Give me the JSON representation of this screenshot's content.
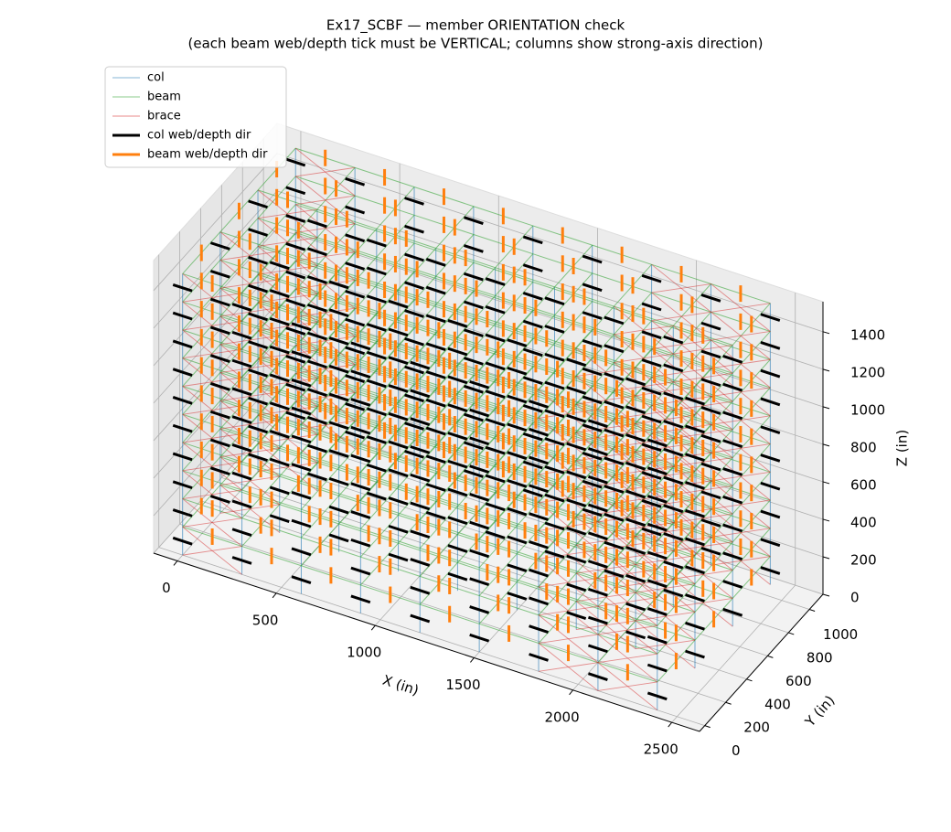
{
  "chart_data": {
    "type": "frame3d",
    "title": "Ex17_SCBF — member ORIENTATION check",
    "subtitle": "(each beam web/depth tick must be VERTICAL; columns show strong-axis direction)",
    "xlabel": "X (in)",
    "ylabel": "Y (in)",
    "zlabel": "Z (in)",
    "xlim": [
      -120,
      2640
    ],
    "ylim": [
      -50,
      1130
    ],
    "zlim": [
      0,
      1560
    ],
    "xticks": [
      0,
      500,
      1000,
      1500,
      2000,
      2500
    ],
    "yticks": [
      0,
      200,
      400,
      600,
      800,
      1000
    ],
    "zticks": [
      0,
      200,
      400,
      600,
      800,
      1000,
      1200,
      1400
    ],
    "x_grid": [
      0,
      300,
      600,
      900,
      1200,
      1500,
      1800,
      2100,
      2400
    ],
    "y_grid": [
      0,
      360,
      720,
      1080
    ],
    "z_levels": [
      0,
      150,
      300,
      450,
      600,
      750,
      900,
      1050,
      1200,
      1350,
      1500
    ],
    "braced_x_bays": [
      0,
      6,
      7
    ],
    "series": [
      {
        "name": "col",
        "color": "#1f77b4"
      },
      {
        "name": "beam",
        "color": "#2ca02c"
      },
      {
        "name": "brace",
        "color": "#d62728"
      },
      {
        "name": "col web/depth dir",
        "color": "#000000"
      },
      {
        "name": "beam web/depth dir",
        "color": "#ff7f0e"
      }
    ],
    "grid": true,
    "legend": "upper left"
  }
}
